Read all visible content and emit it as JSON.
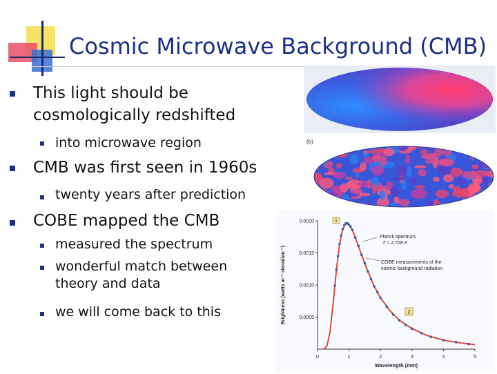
{
  "title": "Cosmic Microwave Background (CMB)",
  "bullets": [
    {
      "text": "This light should be cosmologically redshifted",
      "line1": "This light should be",
      "line2": "cosmologically redshifted",
      "sub": [
        {
          "text": "into microwave region"
        }
      ]
    },
    {
      "text": "CMB was first seen in 1960s",
      "sub": [
        {
          "text": "twenty years after prediction"
        }
      ]
    },
    {
      "text": "COBE mapped the CMB",
      "sub": [
        {
          "text": "measured the spectrum"
        },
        {
          "text": "wonderful match between theory and data",
          "line1": "wonderful match between",
          "line2": "theory and data"
        },
        {
          "text": "we will come back to this"
        }
      ]
    }
  ],
  "figure": {
    "panel_b_label": "(b)",
    "marker_1": "1",
    "marker_2": "2",
    "legend_planck": "Planck spectrum,",
    "legend_temp": "T = 2.728 K",
    "legend_cobe_1": "COBE measurements of the",
    "legend_cobe_2": "cosmic background radiation",
    "icon_maps": [
      "cmb-dipole-map-icon",
      "cmb-anisotropy-map-icon"
    ]
  },
  "chart_data": {
    "type": "line",
    "title": "",
    "xlabel": "Wavelength (mm)",
    "ylabel": "Brightness (watts m⁻² steradian⁻¹)",
    "xlim": [
      0,
      5
    ],
    "ylim": [
      0,
      0.002
    ],
    "xticks": [
      "0",
      "1",
      "2",
      "3",
      "4",
      "5"
    ],
    "yticks": [
      "0.0005",
      "0.0010",
      "0.0015",
      "0.0020"
    ],
    "series": [
      {
        "name": "Planck spectrum, T = 2.728 K",
        "color": "#e0483c",
        "x": [
          0.2,
          0.3,
          0.4,
          0.5,
          0.6,
          0.7,
          0.8,
          0.9,
          1.0,
          1.1,
          1.2,
          1.4,
          1.6,
          1.8,
          2.0,
          2.3,
          2.6,
          3.0,
          3.5,
          4.0,
          4.5,
          5.0
        ],
        "y": [
          0.0,
          5e-05,
          0.00027,
          0.00073,
          0.00124,
          0.00164,
          0.00187,
          0.00196,
          0.00194,
          0.00186,
          0.00174,
          0.00147,
          0.00121,
          0.00098,
          0.0008,
          0.0006,
          0.00045,
          0.00032,
          0.00021,
          0.00014,
          0.0001,
          7e-05
        ]
      },
      {
        "name": "COBE measurements of the cosmic background radiation",
        "color": "#3d5aa8",
        "x": [
          0.55,
          0.6,
          0.65,
          0.7,
          0.75,
          0.8,
          0.85,
          0.9,
          0.95,
          1.0,
          1.05,
          1.1,
          1.2,
          1.3,
          1.4,
          1.5,
          1.6,
          1.7,
          1.8,
          1.9,
          2.0,
          2.2,
          2.4,
          2.6,
          2.8,
          3.0,
          3.3,
          3.6,
          4.0,
          4.4,
          4.8
        ],
        "y": [
          0.00099,
          0.00124,
          0.00145,
          0.00164,
          0.00177,
          0.00187,
          0.00193,
          0.00196,
          0.00196,
          0.00194,
          0.00191,
          0.00186,
          0.00174,
          0.00161,
          0.00147,
          0.00134,
          0.00121,
          0.00109,
          0.00098,
          0.00089,
          0.0008,
          0.00066,
          0.00054,
          0.00045,
          0.00038,
          0.00032,
          0.00025,
          0.00019,
          0.00014,
          0.00011,
          8e-05
        ]
      }
    ],
    "grid": false,
    "legend": "top-right"
  },
  "colors": {
    "title": "#1c2f86",
    "bullet": "#1c2f86",
    "curve": "#e0483c",
    "points": "#3d5aa8"
  }
}
